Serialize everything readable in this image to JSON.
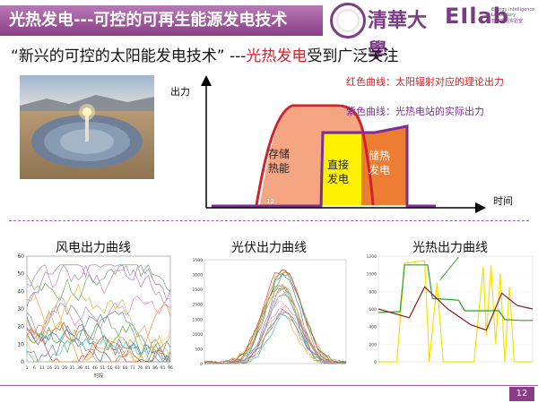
{
  "header": {
    "title": "光热发电---可控的可再生能源发电技术",
    "logo_tsinghua": "清華大學",
    "elab_mark": "EIlab",
    "elab_sub1": "Energy Intelligence Laboratory",
    "elab_sub2": "智慧能源实验室",
    "elab_sub3": ""
  },
  "headline": {
    "part1": "“新兴的可控的太阳能发电技术” ---",
    "part_red": "光热发电",
    "part2": "受到广泛关注"
  },
  "main_diagram": {
    "ylabel": "出力",
    "xlabel": "时间",
    "legend_red": "红色曲线：太阳辐射对应的理论出力",
    "legend_purple": "紫色曲线：光热电站的实际出力",
    "region_storage": "存储热能",
    "region_direct": "直接发电",
    "region_heat": "储热发电",
    "inner_num": "12",
    "colors": {
      "red": "#d2232a",
      "purple": "#7b2f8e",
      "salmon": "#f4a582",
      "yellow": "#fff200",
      "orange": "#ee7d34"
    }
  },
  "charts": {
    "wind_title": "风电出力曲线",
    "pv_title": "光伏出力曲线",
    "csp_title": "光热出力曲线",
    "wind_yticks": [
      "60",
      "50",
      "40",
      "30",
      "20",
      "10",
      "0"
    ],
    "wind_xticks": [
      "1",
      "6",
      "11",
      "16",
      "21",
      "26",
      "31",
      "36",
      "41",
      "46",
      "51",
      "56",
      "61",
      "66",
      "71",
      "76",
      "81",
      "86",
      "91",
      "96"
    ],
    "wind_xlabel": "时段",
    "pv_yticks": [
      "3500",
      "3000",
      "2500",
      "2000",
      "1500",
      "1000",
      "500",
      "0"
    ],
    "csp_yticks": [
      "1200",
      "1000",
      "800",
      "600",
      "400",
      "200",
      "0"
    ]
  },
  "footer": {
    "page_number": "12"
  }
}
